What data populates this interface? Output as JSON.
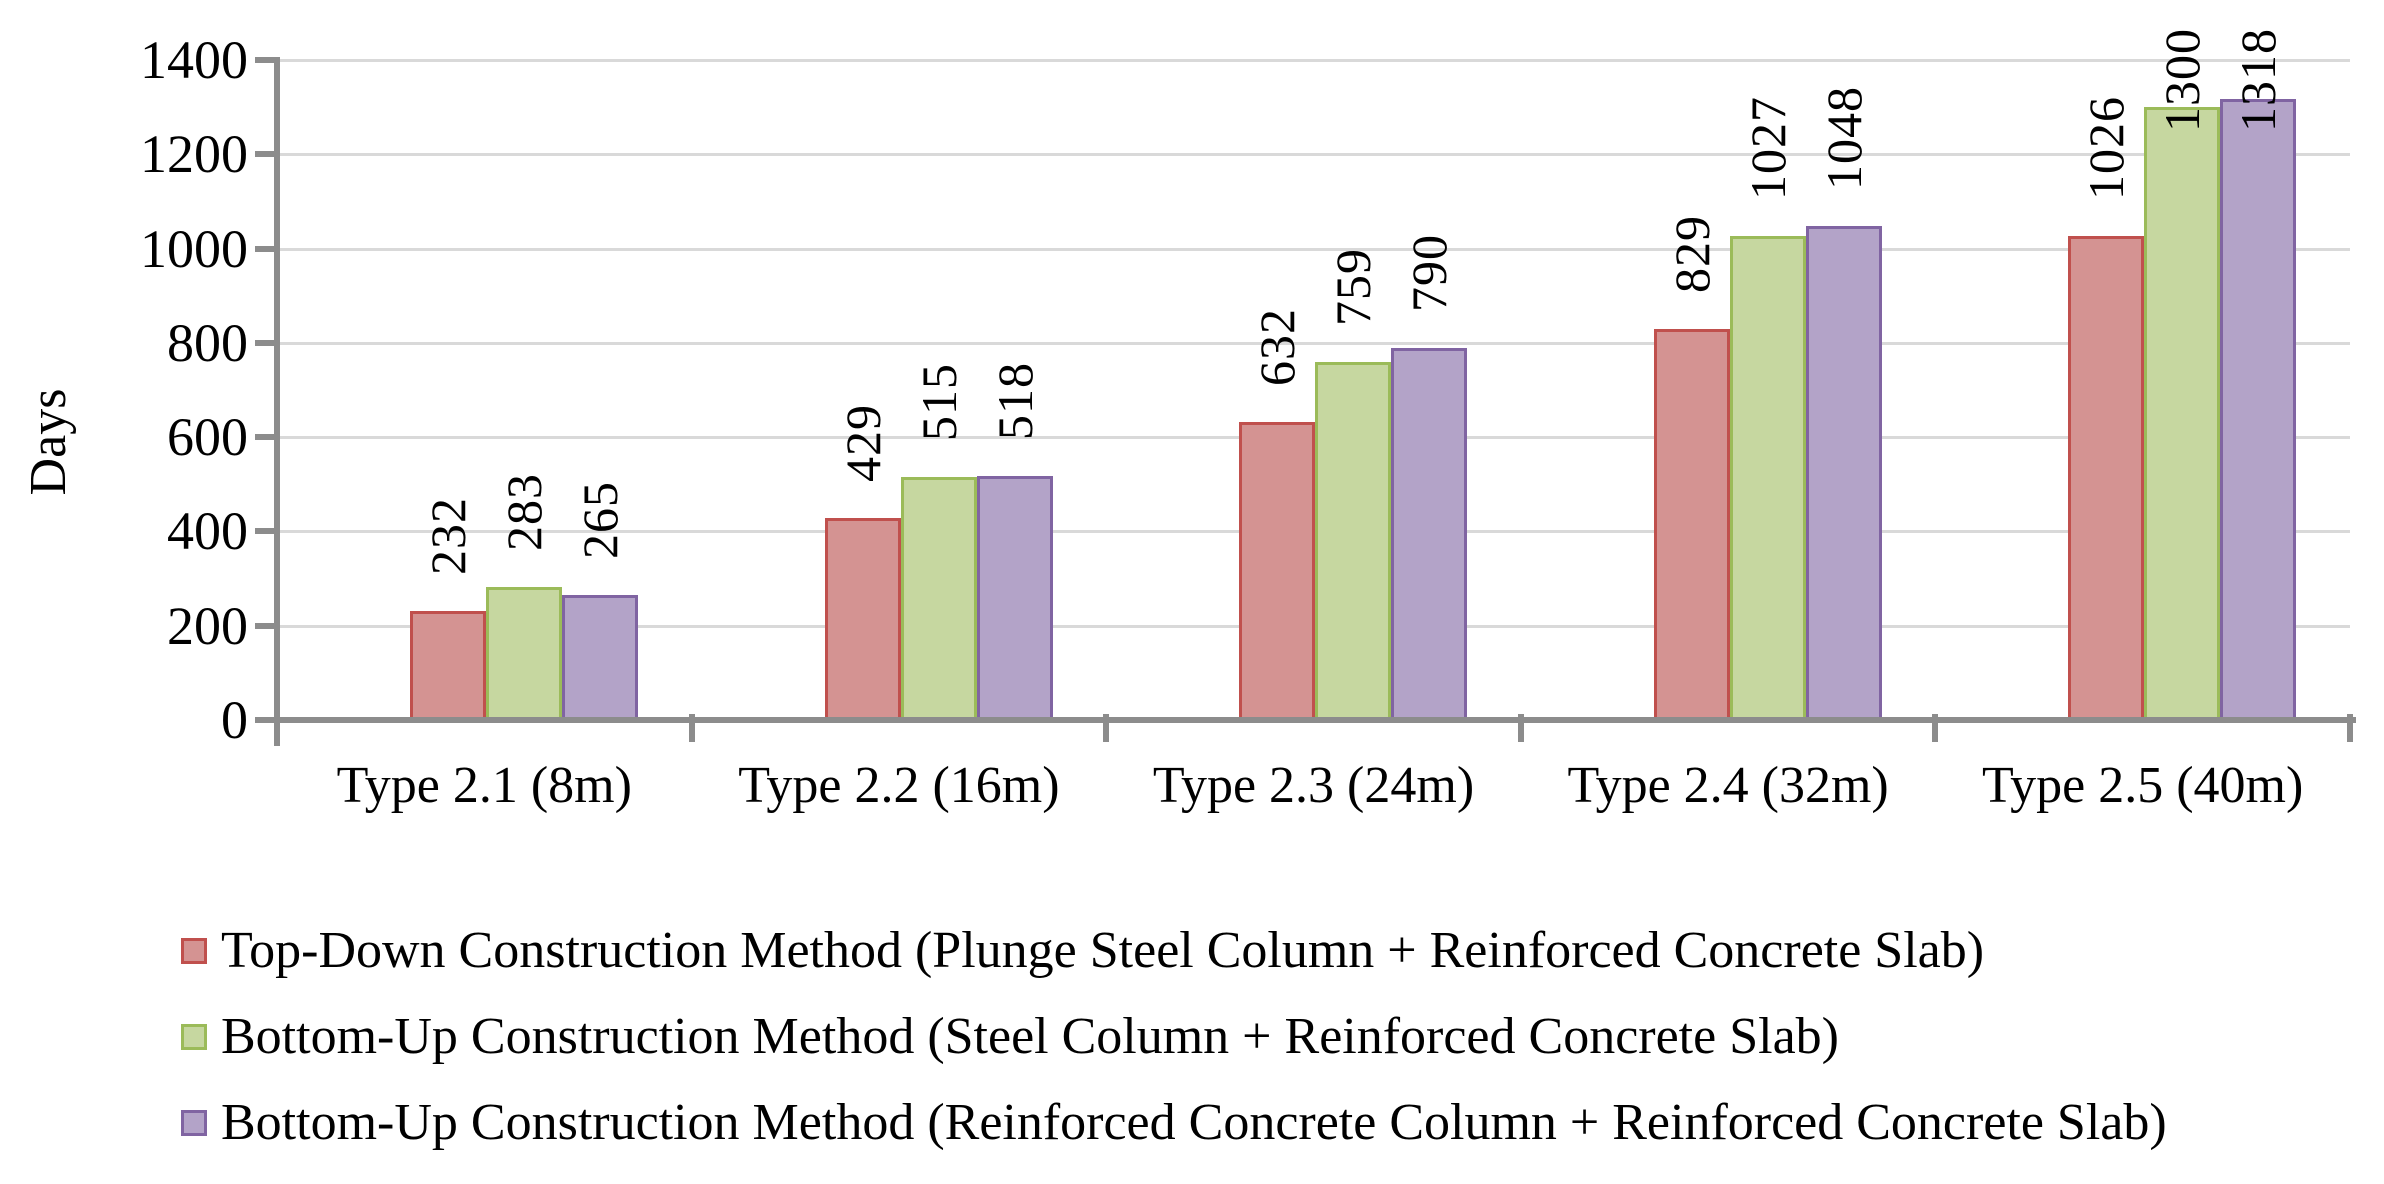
{
  "chart_data": {
    "type": "bar",
    "title": "",
    "xlabel": "",
    "ylabel": "Days",
    "ylim": [
      0,
      1400
    ],
    "yticks": [
      0,
      200,
      400,
      600,
      800,
      1000,
      1200,
      1400
    ],
    "grid": true,
    "legend_position": "bottom",
    "data_labels": true,
    "data_label_rotation": "vertical",
    "categories": [
      "Type 2.1 (8m)",
      "Type 2.2 (16m)",
      "Type 2.3 (24m)",
      "Type 2.4 (32m)",
      "Type 2.5 (40m)"
    ],
    "series": [
      {
        "name": "Top-Down Construction Method (Plunge Steel Column + Reinforced Concrete Slab)",
        "color": "#D49392",
        "border_color": "#C0504D",
        "values": [
          232,
          429,
          632,
          829,
          1026
        ]
      },
      {
        "name": "Bottom-Up Construction Method (Steel Column + Reinforced Concrete Slab)",
        "color": "#C6D7A0",
        "border_color": "#9BBB59",
        "values": [
          283,
          515,
          759,
          1027,
          1300
        ]
      },
      {
        "name": "Bottom-Up Construction Method (Reinforced Concrete Column + Reinforced Concrete Slab)",
        "color": "#B3A3C8",
        "border_color": "#8064A2",
        "values": [
          265,
          518,
          790,
          1048,
          1318
        ]
      }
    ]
  },
  "colors": {
    "axis": "#8C8C8C",
    "gridline": "#D9D9D9",
    "text": "#000000",
    "background": "#FFFFFF"
  }
}
